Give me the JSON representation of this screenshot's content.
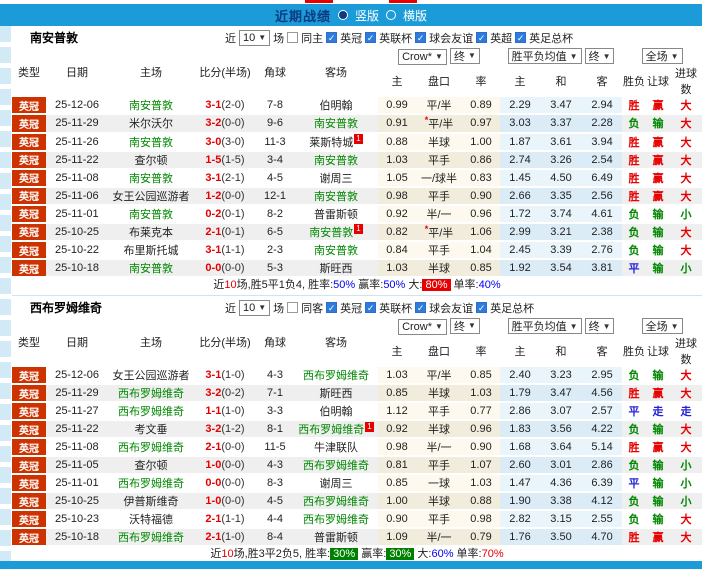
{
  "top": {
    "title": "近期战绩",
    "radios": [
      {
        "label": "竖版",
        "selected": true
      },
      {
        "label": "横版",
        "selected": false
      }
    ]
  },
  "columns": {
    "type": "类型",
    "date": "日期",
    "home": "主场",
    "score": "比分(半场)",
    "corner": "角球",
    "away": "客场",
    "odds_group": {
      "dd1": "Crow*",
      "dd2": "终",
      "sub": [
        "主",
        "盘口",
        "率"
      ]
    },
    "avg_group": {
      "dd1": "胜平负均值",
      "dd2": "终",
      "sub": [
        "主",
        "和",
        "客"
      ]
    },
    "result_group": {
      "dd": "全场",
      "sub": [
        "胜负",
        "让球",
        "进球数"
      ]
    }
  },
  "filter_labels": {
    "near": "近",
    "games": "场"
  },
  "sections": [
    {
      "team": "南安普敦",
      "filter": {
        "count": "10",
        "same": "同主",
        "same_checked": false,
        "leagues": [
          "英冠",
          "英联杯",
          "球会友谊",
          "英超",
          "英足总杯"
        ]
      },
      "rows": [
        {
          "lg": "英冠",
          "date": "25-12-06",
          "home": "南安普敦",
          "hf": true,
          "hb": "",
          "score": "3-1",
          "half": "(2-0)",
          "corner": "7-8",
          "away": "伯明翰",
          "af": false,
          "ab": "",
          "o1": "0.99",
          "st": false,
          "hc": "平/半",
          "o2": "0.89",
          "a1": "2.29",
          "a2": "3.47",
          "a3": "2.94",
          "m1": [
            "胜",
            "r"
          ],
          "m2": [
            "赢",
            "r"
          ],
          "m3": [
            "大",
            "r"
          ]
        },
        {
          "lg": "英冠",
          "date": "25-11-29",
          "home": "米尔沃尔",
          "hf": false,
          "hb": "",
          "score": "3-2",
          "half": "(0-0)",
          "corner": "9-6",
          "away": "南安普敦",
          "af": true,
          "ab": "",
          "o1": "0.91",
          "st": true,
          "hc": "平/半",
          "o2": "0.97",
          "a1": "3.03",
          "a2": "3.37",
          "a3": "2.28",
          "m1": [
            "负",
            "g"
          ],
          "m2": [
            "输",
            "g"
          ],
          "m3": [
            "大",
            "r"
          ]
        },
        {
          "lg": "英冠",
          "date": "25-11-26",
          "home": "南安普敦",
          "hf": true,
          "hb": "",
          "score": "3-0",
          "half": "(3-0)",
          "corner": "11-3",
          "away": "莱斯特城",
          "af": false,
          "ab": "1",
          "o1": "0.88",
          "st": false,
          "hc": "半球",
          "o2": "1.00",
          "a1": "1.87",
          "a2": "3.61",
          "a3": "3.94",
          "m1": [
            "胜",
            "r"
          ],
          "m2": [
            "赢",
            "r"
          ],
          "m3": [
            "大",
            "r"
          ]
        },
        {
          "lg": "英冠",
          "date": "25-11-22",
          "home": "查尔顿",
          "hf": false,
          "hb": "",
          "score": "1-5",
          "half": "(1-5)",
          "corner": "3-4",
          "away": "南安普敦",
          "af": true,
          "ab": "",
          "o1": "1.03",
          "st": false,
          "hc": "平手",
          "o2": "0.86",
          "a1": "2.74",
          "a2": "3.26",
          "a3": "2.54",
          "m1": [
            "胜",
            "r"
          ],
          "m2": [
            "赢",
            "r"
          ],
          "m3": [
            "大",
            "r"
          ]
        },
        {
          "lg": "英冠",
          "date": "25-11-08",
          "home": "南安普敦",
          "hf": true,
          "hb": "",
          "score": "3-1",
          "half": "(2-1)",
          "corner": "4-5",
          "away": "谢周三",
          "af": false,
          "ab": "",
          "o1": "1.05",
          "st": false,
          "hc": "一/球半",
          "o2": "0.83",
          "a1": "1.45",
          "a2": "4.50",
          "a3": "6.49",
          "m1": [
            "胜",
            "r"
          ],
          "m2": [
            "赢",
            "r"
          ],
          "m3": [
            "大",
            "r"
          ]
        },
        {
          "lg": "英冠",
          "date": "25-11-06",
          "home": "女王公园巡游者",
          "hf": false,
          "hb": "",
          "score": "1-2",
          "half": "(0-0)",
          "corner": "12-1",
          "away": "南安普敦",
          "af": true,
          "ab": "",
          "o1": "0.98",
          "st": false,
          "hc": "平手",
          "o2": "0.90",
          "a1": "2.66",
          "a2": "3.35",
          "a3": "2.56",
          "m1": [
            "胜",
            "r"
          ],
          "m2": [
            "赢",
            "r"
          ],
          "m3": [
            "大",
            "r"
          ]
        },
        {
          "lg": "英冠",
          "date": "25-11-01",
          "home": "南安普敦",
          "hf": true,
          "hb": "",
          "score": "0-2",
          "half": "(0-1)",
          "corner": "8-2",
          "away": "普雷斯顿",
          "af": false,
          "ab": "",
          "o1": "0.92",
          "st": false,
          "hc": "半/一",
          "o2": "0.96",
          "a1": "1.72",
          "a2": "3.74",
          "a3": "4.61",
          "m1": [
            "负",
            "g"
          ],
          "m2": [
            "输",
            "g"
          ],
          "m3": [
            "小",
            "g"
          ]
        },
        {
          "lg": "英冠",
          "date": "25-10-25",
          "home": "布莱克本",
          "hf": false,
          "hb": "",
          "score": "2-1",
          "half": "(0-1)",
          "corner": "6-5",
          "away": "南安普敦",
          "af": true,
          "ab": "1",
          "o1": "0.82",
          "st": true,
          "hc": "平/半",
          "o2": "1.06",
          "a1": "2.99",
          "a2": "3.21",
          "a3": "2.38",
          "m1": [
            "负",
            "g"
          ],
          "m2": [
            "输",
            "g"
          ],
          "m3": [
            "大",
            "r"
          ]
        },
        {
          "lg": "英冠",
          "date": "25-10-22",
          "home": "布里斯托城",
          "hf": false,
          "hb": "",
          "score": "3-1",
          "half": "(1-1)",
          "corner": "2-3",
          "away": "南安普敦",
          "af": true,
          "ab": "",
          "o1": "0.84",
          "st": false,
          "hc": "平手",
          "o2": "1.04",
          "a1": "2.45",
          "a2": "3.39",
          "a3": "2.76",
          "m1": [
            "负",
            "g"
          ],
          "m2": [
            "输",
            "g"
          ],
          "m3": [
            "大",
            "r"
          ]
        },
        {
          "lg": "英冠",
          "date": "25-10-18",
          "home": "南安普敦",
          "hf": true,
          "hb": "",
          "score": "0-0",
          "half": "(0-0)",
          "corner": "5-3",
          "away": "斯旺西",
          "af": false,
          "ab": "",
          "o1": "1.03",
          "st": false,
          "hc": "半球",
          "o2": "0.85",
          "a1": "1.92",
          "a2": "3.54",
          "a3": "3.81",
          "m1": [
            "平",
            "b"
          ],
          "m2": [
            "输",
            "g"
          ],
          "m3": [
            "小",
            "g"
          ]
        }
      ],
      "summary": [
        {
          "t": "近"
        },
        {
          "t": "10",
          "c": "r"
        },
        {
          "t": "场,胜5平1负4, 胜率:"
        },
        {
          "t": "50%",
          "c": "bl"
        },
        {
          "t": " 赢率:"
        },
        {
          "t": "50%",
          "c": "bl"
        },
        {
          "t": " 大:"
        },
        {
          "t": "80%",
          "bg": "r"
        },
        {
          "t": " 单率:"
        },
        {
          "t": "40%",
          "c": "bl"
        }
      ]
    },
    {
      "team": "西布罗姆维奇",
      "filter": {
        "count": "10",
        "same": "同客",
        "same_checked": false,
        "leagues": [
          "英冠",
          "英联杯",
          "球会友谊",
          "英足总杯"
        ]
      },
      "rows": [
        {
          "lg": "英冠",
          "date": "25-12-06",
          "home": "女王公园巡游者",
          "hf": false,
          "hb": "",
          "score": "3-1",
          "half": "(1-0)",
          "corner": "4-3",
          "away": "西布罗姆维奇",
          "af": true,
          "ab": "",
          "o1": "1.03",
          "st": false,
          "hc": "平/半",
          "o2": "0.85",
          "a1": "2.40",
          "a2": "3.23",
          "a3": "2.95",
          "m1": [
            "负",
            "g"
          ],
          "m2": [
            "输",
            "g"
          ],
          "m3": [
            "大",
            "r"
          ]
        },
        {
          "lg": "英冠",
          "date": "25-11-29",
          "home": "西布罗姆维奇",
          "hf": true,
          "hb": "",
          "score": "3-2",
          "half": "(0-2)",
          "corner": "7-1",
          "away": "斯旺西",
          "af": false,
          "ab": "",
          "o1": "0.85",
          "st": false,
          "hc": "半球",
          "o2": "1.03",
          "a1": "1.79",
          "a2": "3.47",
          "a3": "4.56",
          "m1": [
            "胜",
            "r"
          ],
          "m2": [
            "赢",
            "r"
          ],
          "m3": [
            "大",
            "r"
          ]
        },
        {
          "lg": "英冠",
          "date": "25-11-27",
          "home": "西布罗姆维奇",
          "hf": true,
          "hb": "",
          "score": "1-1",
          "half": "(1-0)",
          "corner": "3-3",
          "away": "伯明翰",
          "af": false,
          "ab": "",
          "o1": "1.12",
          "st": false,
          "hc": "平手",
          "o2": "0.77",
          "a1": "2.86",
          "a2": "3.07",
          "a3": "2.57",
          "m1": [
            "平",
            "b"
          ],
          "m2": [
            "走",
            "b"
          ],
          "m3": [
            "走",
            "b"
          ]
        },
        {
          "lg": "英冠",
          "date": "25-11-22",
          "home": "考文垂",
          "hf": false,
          "hb": "",
          "score": "3-2",
          "half": "(1-2)",
          "corner": "8-1",
          "away": "西布罗姆维奇",
          "af": true,
          "ab": "1",
          "o1": "0.92",
          "st": false,
          "hc": "半球",
          "o2": "0.96",
          "a1": "1.83",
          "a2": "3.56",
          "a3": "4.22",
          "m1": [
            "负",
            "g"
          ],
          "m2": [
            "输",
            "g"
          ],
          "m3": [
            "大",
            "r"
          ]
        },
        {
          "lg": "英冠",
          "date": "25-11-08",
          "home": "西布罗姆维奇",
          "hf": true,
          "hb": "",
          "score": "2-1",
          "half": "(0-0)",
          "corner": "11-5",
          "away": "牛津联队",
          "af": false,
          "ab": "",
          "o1": "0.98",
          "st": false,
          "hc": "半/一",
          "o2": "0.90",
          "a1": "1.68",
          "a2": "3.64",
          "a3": "5.14",
          "m1": [
            "胜",
            "r"
          ],
          "m2": [
            "赢",
            "r"
          ],
          "m3": [
            "大",
            "r"
          ]
        },
        {
          "lg": "英冠",
          "date": "25-11-05",
          "home": "查尔顿",
          "hf": false,
          "hb": "",
          "score": "1-0",
          "half": "(0-0)",
          "corner": "4-3",
          "away": "西布罗姆维奇",
          "af": true,
          "ab": "",
          "o1": "0.81",
          "st": false,
          "hc": "平手",
          "o2": "1.07",
          "a1": "2.60",
          "a2": "3.01",
          "a3": "2.86",
          "m1": [
            "负",
            "g"
          ],
          "m2": [
            "输",
            "g"
          ],
          "m3": [
            "小",
            "g"
          ]
        },
        {
          "lg": "英冠",
          "date": "25-11-01",
          "home": "西布罗姆维奇",
          "hf": true,
          "hb": "",
          "score": "0-0",
          "half": "(0-0)",
          "corner": "8-3",
          "away": "谢周三",
          "af": false,
          "ab": "",
          "o1": "0.85",
          "st": false,
          "hc": "一球",
          "o2": "1.03",
          "a1": "1.47",
          "a2": "4.36",
          "a3": "6.39",
          "m1": [
            "平",
            "b"
          ],
          "m2": [
            "输",
            "g"
          ],
          "m3": [
            "小",
            "g"
          ]
        },
        {
          "lg": "英冠",
          "date": "25-10-25",
          "home": "伊普斯维奇",
          "hf": false,
          "hb": "",
          "score": "1-0",
          "half": "(0-0)",
          "corner": "4-5",
          "away": "西布罗姆维奇",
          "af": true,
          "ab": "",
          "o1": "1.00",
          "st": false,
          "hc": "半球",
          "o2": "0.88",
          "a1": "1.90",
          "a2": "3.38",
          "a3": "4.12",
          "m1": [
            "负",
            "g"
          ],
          "m2": [
            "输",
            "g"
          ],
          "m3": [
            "小",
            "g"
          ]
        },
        {
          "lg": "英冠",
          "date": "25-10-23",
          "home": "沃特福德",
          "hf": false,
          "hb": "",
          "score": "2-1",
          "half": "(1-1)",
          "corner": "4-4",
          "away": "西布罗姆维奇",
          "af": true,
          "ab": "",
          "o1": "0.90",
          "st": false,
          "hc": "平手",
          "o2": "0.98",
          "a1": "2.82",
          "a2": "3.15",
          "a3": "2.55",
          "m1": [
            "负",
            "g"
          ],
          "m2": [
            "输",
            "g"
          ],
          "m3": [
            "大",
            "r"
          ]
        },
        {
          "lg": "英冠",
          "date": "25-10-18",
          "home": "西布罗姆维奇",
          "hf": true,
          "hb": "",
          "score": "2-1",
          "half": "(1-0)",
          "corner": "8-4",
          "away": "普雷斯顿",
          "af": false,
          "ab": "",
          "o1": "1.09",
          "st": false,
          "hc": "半/一",
          "o2": "0.79",
          "a1": "1.76",
          "a2": "3.50",
          "a3": "4.70",
          "m1": [
            "胜",
            "r"
          ],
          "m2": [
            "赢",
            "r"
          ],
          "m3": [
            "大",
            "r"
          ]
        }
      ],
      "summary": [
        {
          "t": "近"
        },
        {
          "t": "10",
          "c": "r"
        },
        {
          "t": "场,胜3平2负5, 胜率:"
        },
        {
          "t": "30%",
          "bg": "g"
        },
        {
          "t": " 赢率:"
        },
        {
          "t": "30%",
          "bg": "g"
        },
        {
          "t": " 大:"
        },
        {
          "t": "60%",
          "c": "bl"
        },
        {
          "t": " 单率:"
        },
        {
          "t": "70%",
          "c": "r"
        }
      ]
    }
  ]
}
